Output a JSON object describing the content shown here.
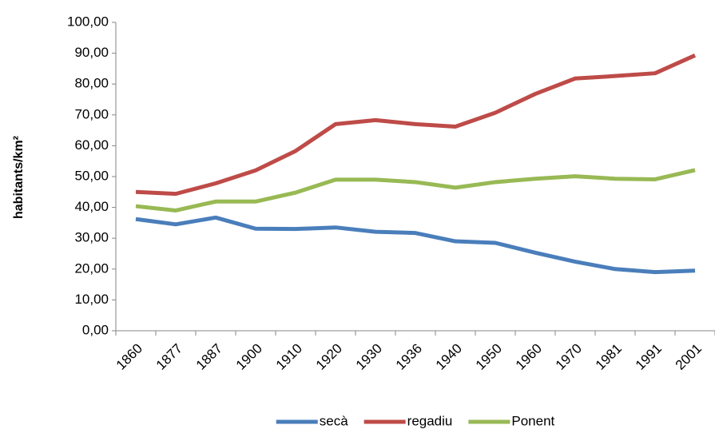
{
  "chart_data": {
    "type": "line",
    "y_label": "habitants/km²",
    "categories": [
      "1860",
      "1877",
      "1887",
      "1900",
      "1910",
      "1920",
      "1930",
      "1936",
      "1940",
      "1950",
      "1960",
      "1970",
      "1981",
      "1991",
      "2001"
    ],
    "series": [
      {
        "name": "secà",
        "color": "#4a7ebb",
        "values": [
          36.2,
          34.5,
          36.7,
          33.1,
          33.0,
          33.5,
          32.1,
          31.7,
          29.0,
          28.5,
          25.3,
          22.4,
          20.0,
          19.0,
          19.5
        ]
      },
      {
        "name": "regadiu",
        "color": "#be4b48",
        "values": [
          45.0,
          44.4,
          47.8,
          52.0,
          58.3,
          67.0,
          68.3,
          67.0,
          66.2,
          70.7,
          76.8,
          81.8,
          82.6,
          83.5,
          89.3
        ]
      },
      {
        "name": "Ponent",
        "color": "#98b954",
        "values": [
          40.4,
          39.0,
          41.9,
          41.9,
          44.8,
          49.0,
          49.0,
          48.2,
          46.4,
          48.2,
          49.3,
          50.1,
          49.3,
          49.1,
          52.1
        ]
      }
    ],
    "ylim": [
      0,
      100
    ],
    "yticks": [
      {
        "value": 0,
        "label": "0,00"
      },
      {
        "value": 10,
        "label": "10,00"
      },
      {
        "value": 20,
        "label": "20,00"
      },
      {
        "value": 30,
        "label": "30,00"
      },
      {
        "value": 40,
        "label": "40,00"
      },
      {
        "value": 50,
        "label": "50,00"
      },
      {
        "value": 60,
        "label": "60,00"
      },
      {
        "value": 70,
        "label": "70,00"
      },
      {
        "value": 80,
        "label": "80,00"
      },
      {
        "value": 90,
        "label": "90,00"
      },
      {
        "value": 100,
        "label": "100,00"
      }
    ],
    "grid": false,
    "legend": "bottom"
  }
}
